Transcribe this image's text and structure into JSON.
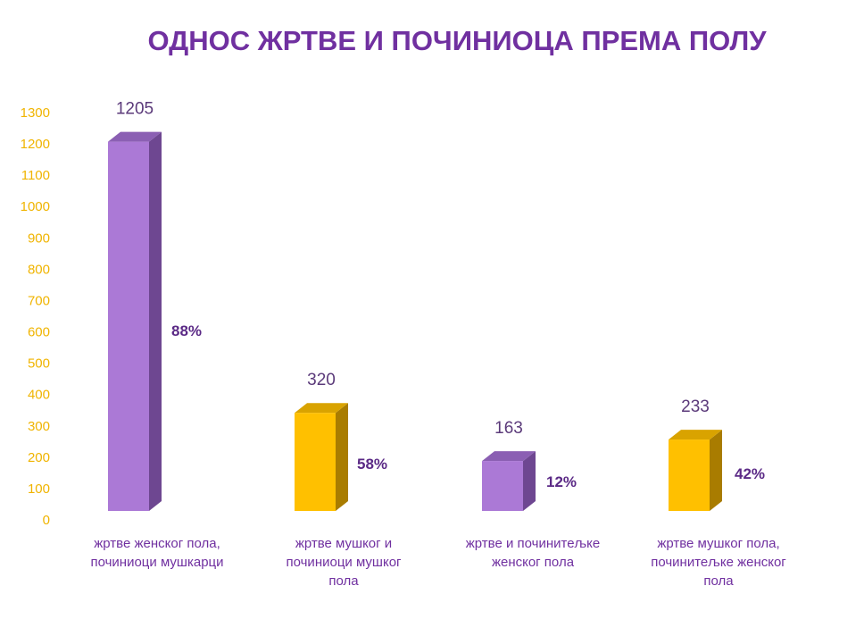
{
  "chart_data": {
    "type": "bar",
    "title": "ОДНОС ЖРТВЕ И ПОЧИНИОЦА ПРЕМА ПОЛУ",
    "categories": [
      [
        "жртве женског пола,",
        "починиоци мушкарци"
      ],
      [
        "жртве мушког и",
        "починиоци мушког",
        "пола"
      ],
      [
        "жртве и починитељке",
        "женског пола"
      ],
      [
        "жртве мушког пола,",
        "починитељке женског",
        "пола"
      ]
    ],
    "values": [
      1205,
      320,
      163,
      233
    ],
    "value_labels": [
      "1205",
      "320",
      "163",
      "233"
    ],
    "percent_labels": [
      "88%",
      "58%",
      "12%",
      "42%"
    ],
    "colors": [
      "#ab79d6",
      "#ffc000",
      "#ab79d6",
      "#ffc000"
    ],
    "side_colors": [
      "#6e4791",
      "#a97c00",
      "#6e4791",
      "#a97c00"
    ],
    "top_colors": [
      "#8b5fb3",
      "#d9a300",
      "#8b5fb3",
      "#d9a300"
    ],
    "ylim": [
      0,
      1300
    ],
    "y_ticks": [
      0,
      100,
      200,
      300,
      400,
      500,
      600,
      700,
      800,
      900,
      1000,
      1100,
      1200,
      1300
    ],
    "xlabel": "",
    "ylabel": "",
    "grid": false,
    "legend": "none"
  }
}
